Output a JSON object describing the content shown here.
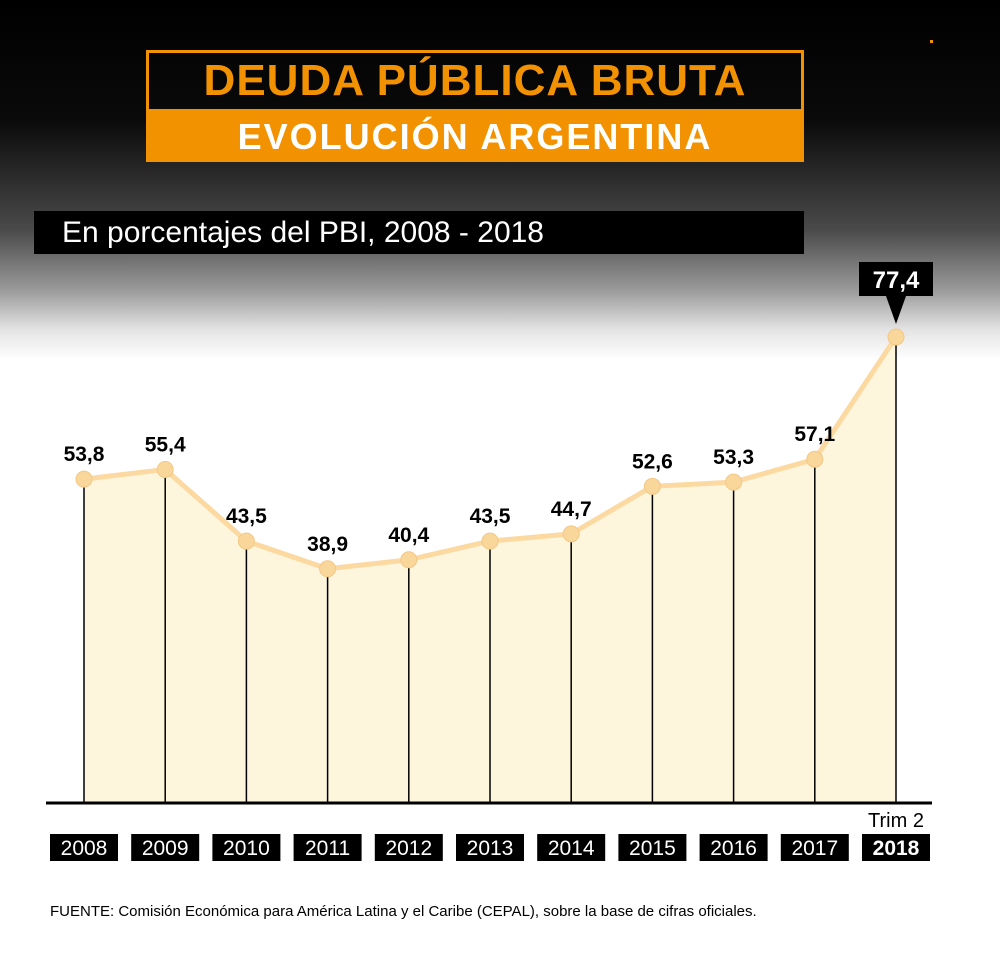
{
  "header": {
    "title": "DEUDA PÚBLICA BRUTA",
    "subtitle": "EVOLUCIÓN ARGENTINA",
    "units": "En porcentajes del PBI,  2008 - 2018"
  },
  "colors": {
    "accent": "#f39200",
    "line": "#fcd9a0",
    "fill": "#fdf5dc",
    "marker": "#f9d69a",
    "label_box": "#000000"
  },
  "chart_data": {
    "type": "area",
    "categories": [
      "2008",
      "2009",
      "2010",
      "2011",
      "2012",
      "2013",
      "2014",
      "2015",
      "2016",
      "2017",
      "2018"
    ],
    "values": [
      53.8,
      55.4,
      43.5,
      38.9,
      40.4,
      43.5,
      44.7,
      52.6,
      53.3,
      57.1,
      77.4
    ],
    "data_labels": [
      "53,8",
      "55,4",
      "43,5",
      "38,9",
      "40,4",
      "43,5",
      "44,7",
      "52,6",
      "53,3",
      "57,1",
      "77,4"
    ],
    "last_note": "Trim 2",
    "highlighted_index": 10,
    "ylim": [
      0,
      77.4
    ]
  },
  "footer": {
    "source": "FUENTE: Comisión Económica para América Latina y el Caribe (CEPAL), sobre la base de cifras oficiales."
  }
}
